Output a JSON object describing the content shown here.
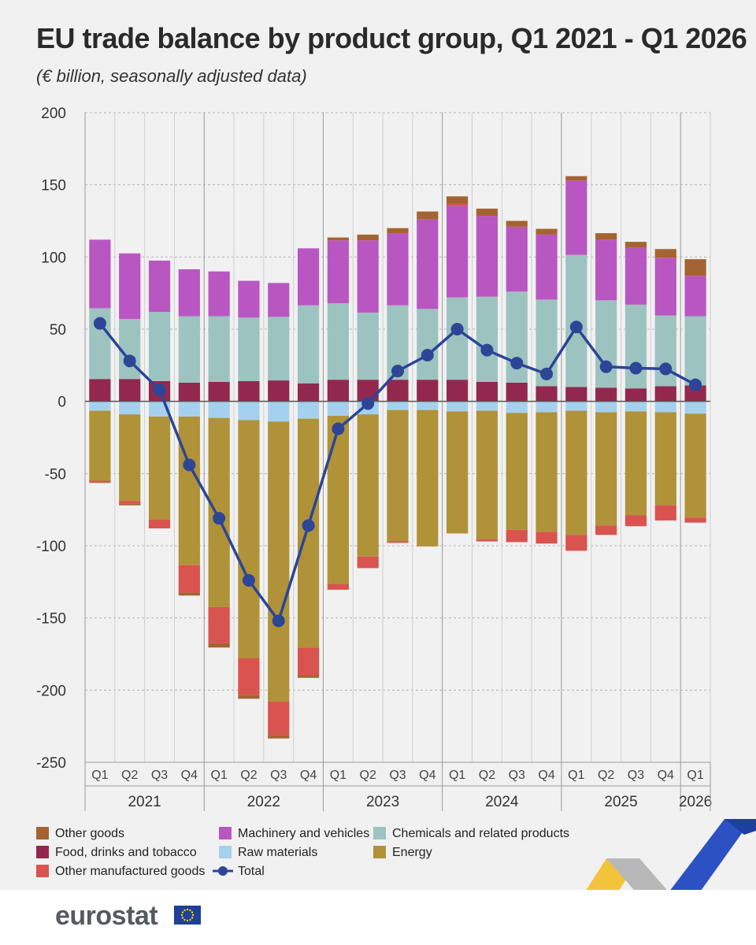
{
  "header": {
    "title": "EU trade balance by product group, Q1 2021 - Q1 2026",
    "subtitle": "(€ billion, seasonally adjusted data)"
  },
  "chart_data": {
    "type": "bar",
    "stacked": true,
    "categories": [
      "Q1",
      "Q2",
      "Q3",
      "Q4",
      "Q1",
      "Q2",
      "Q3",
      "Q4",
      "Q1",
      "Q2",
      "Q3",
      "Q4",
      "Q1",
      "Q2",
      "Q3",
      "Q4",
      "Q1",
      "Q2",
      "Q3",
      "Q4",
      "Q1"
    ],
    "years": [
      {
        "label": "2021",
        "start": 0,
        "count": 4
      },
      {
        "label": "2022",
        "start": 4,
        "count": 4
      },
      {
        "label": "2023",
        "start": 8,
        "count": 4
      },
      {
        "label": "2024",
        "start": 12,
        "count": 4
      },
      {
        "label": "2025",
        "start": 16,
        "count": 4
      },
      {
        "label": "2026",
        "start": 20,
        "count": 1
      }
    ],
    "ylim": [
      -250,
      200
    ],
    "yticks": [
      200,
      150,
      100,
      50,
      0,
      -50,
      -100,
      -150,
      -200,
      -250
    ],
    "grid": true,
    "legend_position": "bottom",
    "series": [
      {
        "name": "Food, drinks and tobacco",
        "color": "#93284e",
        "values": [
          15.5,
          15.5,
          14,
          13,
          13.5,
          14,
          14.5,
          12.5,
          15,
          15,
          15,
          15,
          15,
          13.5,
          13,
          10.5,
          10,
          9.5,
          9,
          10.5,
          11
        ]
      },
      {
        "name": "Chemicals and related products",
        "color": "#9dc3c0",
        "values": [
          49,
          41.5,
          48,
          46,
          45.5,
          44,
          44,
          54,
          53,
          46.5,
          51.5,
          49,
          57,
          59,
          63,
          60,
          91.5,
          60.5,
          58,
          49,
          48
        ]
      },
      {
        "name": "Machinery and vehicles",
        "color": "#b957c2",
        "values": [
          47.5,
          45.5,
          35.5,
          32.5,
          31,
          25.5,
          23.5,
          39.5,
          43.5,
          50,
          50,
          62,
          63.5,
          56,
          45,
          45,
          51.5,
          42,
          39.5,
          40,
          28
        ]
      },
      {
        "name": "Other manufactured goods",
        "color": "#d9534f",
        "values": [
          0,
          0,
          0,
          0,
          0,
          0,
          0,
          0,
          0,
          0,
          0,
          0,
          1.5,
          0,
          0,
          0,
          0,
          0,
          0,
          0,
          0
        ]
      },
      {
        "name": "Other goods",
        "color": "#a46431",
        "values": [
          0,
          0,
          0,
          0,
          0,
          0,
          0,
          0,
          2,
          4,
          3.5,
          5.5,
          5,
          5,
          4,
          4,
          3,
          4.5,
          4,
          6,
          11.5
        ]
      },
      {
        "name": "Raw materials",
        "color": "#a6d1ee",
        "values": [
          -6.5,
          -9,
          -10.5,
          -10.5,
          -11.5,
          -13,
          -14,
          -12,
          -10,
          -9,
          -6,
          -6,
          -7,
          -6.5,
          -8,
          -7.5,
          -6.5,
          -7.5,
          -7,
          -7.5,
          -8.5
        ]
      },
      {
        "name": "Energy",
        "color": "#b09238",
        "values": [
          -48.5,
          -60,
          -71.5,
          -103,
          -131,
          -165,
          -194,
          -158.5,
          -116.5,
          -98.5,
          -91,
          -94.5,
          -84.5,
          -89,
          -81,
          -83,
          -86,
          -78.5,
          -72,
          -64.5,
          -72
        ]
      },
      {
        "name": "Other manufactured goods",
        "color": "#d9534f",
        "values": [
          -1,
          -2,
          -6,
          -19,
          -25,
          -25.5,
          -23,
          -19,
          -4,
          -8,
          -1,
          0,
          0,
          -1.5,
          -8.5,
          -8,
          -11,
          -6.5,
          -7.5,
          -10.5,
          -3.5
        ]
      },
      {
        "name": "Other goods",
        "color": "#a46431",
        "values": [
          -0.5,
          -1,
          0,
          -2,
          -3,
          -2.5,
          -2.5,
          -2,
          0,
          0,
          0,
          0,
          0,
          0,
          0,
          0,
          0,
          0,
          0,
          0,
          0
        ]
      }
    ],
    "total": {
      "name": "Total",
      "color": "#2c4597",
      "values": [
        54,
        28,
        8,
        -44,
        -81,
        -124,
        -152,
        -86,
        -19,
        -1.5,
        21,
        32,
        50,
        35.5,
        26.5,
        19,
        51.5,
        24,
        23,
        22.5,
        11.5
      ]
    }
  },
  "legend": {
    "items": [
      {
        "label": "Other goods",
        "color": "#a46431",
        "kind": "box"
      },
      {
        "label": "Food, drinks and tobacco",
        "color": "#93284e",
        "kind": "box"
      },
      {
        "label": "Other manufactured goods",
        "color": "#d9534f",
        "kind": "box"
      },
      {
        "label": "Machinery and vehicles",
        "color": "#b957c2",
        "kind": "box"
      },
      {
        "label": "Raw materials",
        "color": "#a6d1ee",
        "kind": "box"
      },
      {
        "label": "Total",
        "color": "#2c4597",
        "kind": "line"
      },
      {
        "label": "Chemicals and related products",
        "color": "#9dc3c0",
        "kind": "box"
      },
      {
        "label": "Energy",
        "color": "#b09238",
        "kind": "box"
      }
    ]
  },
  "footer": {
    "logo_text": "eurostat",
    "icons": [
      "eu-flag-icon",
      "ribbon-graphic"
    ]
  }
}
